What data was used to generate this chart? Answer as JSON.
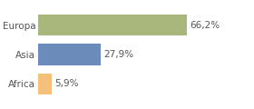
{
  "categories": [
    "Africa",
    "Asia",
    "Europa"
  ],
  "values": [
    5.9,
    27.9,
    66.2
  ],
  "labels": [
    "5,9%",
    "27,9%",
    "66,2%"
  ],
  "bar_colors": [
    "#f5c07a",
    "#6b8cba",
    "#a8b87c"
  ],
  "background_color": "#ffffff",
  "xlim": [
    0,
    95
  ],
  "bar_height": 0.72,
  "label_fontsize": 7.5,
  "tick_fontsize": 7.5
}
